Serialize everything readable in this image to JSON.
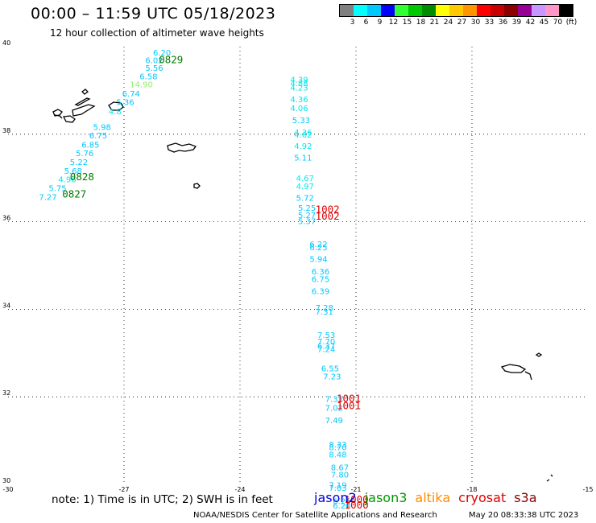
{
  "header": {
    "title": "00:00 – 11:59 UTC 05/18/2023",
    "subtitle": "12 hour collection of altimeter wave heights"
  },
  "legend": {
    "colors": [
      "#808080",
      "#00ffff",
      "#00c8ff",
      "#0000ff",
      "#32ff32",
      "#00c800",
      "#008c00",
      "#ffff00",
      "#ffc800",
      "#ff9600",
      "#ff0000",
      "#c80000",
      "#8c0000",
      "#960096",
      "#c896ff",
      "#ff96c8",
      "#000000"
    ],
    "labels": [
      "3",
      "6",
      "9",
      "12",
      "15",
      "18",
      "21",
      "24",
      "27",
      "30",
      "33",
      "36",
      "39",
      "42",
      "45",
      "70",
      "(ft)"
    ]
  },
  "axes": {
    "lon_ticks": [
      "-30",
      "-27",
      "-24",
      "-21",
      "-18",
      "-15"
    ],
    "lat_ticks": [
      "40",
      "38",
      "36",
      "34",
      "32",
      "30"
    ]
  },
  "wave_labels": [
    {
      "lon": -26.25,
      "lat": 39.8,
      "text": "6.20",
      "color": "#00c8ff"
    },
    {
      "lon": -26.45,
      "lat": 39.62,
      "text": "6.02",
      "color": "#00c8ff"
    },
    {
      "lon": -26.45,
      "lat": 39.45,
      "text": "5.56",
      "color": "#00c8ff"
    },
    {
      "lon": -26.6,
      "lat": 39.26,
      "text": "6.58",
      "color": "#00c8ff"
    },
    {
      "lon": -26.85,
      "lat": 39.07,
      "text": "14.90",
      "color": "#90ee70"
    },
    {
      "lon": -27.05,
      "lat": 38.86,
      "text": "6.74",
      "color": "#00c8ff"
    },
    {
      "lon": -27.2,
      "lat": 38.67,
      "text": "5.36",
      "color": "#00c8ff"
    },
    {
      "lon": -27.4,
      "lat": 38.46,
      "text": "4.8",
      "color": "#00e8ee"
    },
    {
      "lon": -27.8,
      "lat": 38.1,
      "text": "5.98",
      "color": "#00c8ff"
    },
    {
      "lon": -27.9,
      "lat": 37.9,
      "text": "6.75",
      "color": "#00c8ff"
    },
    {
      "lon": -28.1,
      "lat": 37.69,
      "text": "6.85",
      "color": "#00c8ff"
    },
    {
      "lon": -28.25,
      "lat": 37.5,
      "text": "5.76",
      "color": "#00c8ff"
    },
    {
      "lon": -28.4,
      "lat": 37.3,
      "text": "5.22",
      "color": "#00c8ff"
    },
    {
      "lon": -28.55,
      "lat": 37.1,
      "text": "5.68",
      "color": "#00c8ff"
    },
    {
      "lon": -28.7,
      "lat": 36.9,
      "text": "4.96",
      "color": "#00e8ee"
    },
    {
      "lon": -28.95,
      "lat": 36.7,
      "text": "5.75",
      "color": "#00c8ff"
    },
    {
      "lon": -29.2,
      "lat": 36.5,
      "text": "7.27",
      "color": "#00c8ff"
    },
    {
      "lon": -22.7,
      "lat": 39.18,
      "text": "4.39",
      "color": "#00e8ee"
    },
    {
      "lon": -22.7,
      "lat": 39.1,
      "text": "4.88",
      "color": "#00e8ee"
    },
    {
      "lon": -22.7,
      "lat": 39.0,
      "text": "4.23",
      "color": "#00e8ee"
    },
    {
      "lon": -22.7,
      "lat": 38.73,
      "text": "4.36",
      "color": "#00e8ee"
    },
    {
      "lon": -22.7,
      "lat": 38.53,
      "text": "4.06",
      "color": "#00e8ee"
    },
    {
      "lon": -22.65,
      "lat": 38.25,
      "text": "5.33",
      "color": "#00c8ff"
    },
    {
      "lon": -22.6,
      "lat": 37.98,
      "text": "4.36",
      "color": "#00e8ee"
    },
    {
      "lon": -22.6,
      "lat": 37.92,
      "text": "4.62",
      "color": "#00e8ee"
    },
    {
      "lon": -22.6,
      "lat": 37.67,
      "text": "4.92",
      "color": "#00e8ee"
    },
    {
      "lon": -22.6,
      "lat": 37.4,
      "text": "5.11",
      "color": "#00c8ff"
    },
    {
      "lon": -22.55,
      "lat": 36.93,
      "text": "4.67",
      "color": "#00e8ee"
    },
    {
      "lon": -22.55,
      "lat": 36.75,
      "text": "4.97",
      "color": "#00e8ee"
    },
    {
      "lon": -22.55,
      "lat": 36.48,
      "text": "5.72",
      "color": "#00c8ff"
    },
    {
      "lon": -22.5,
      "lat": 36.25,
      "text": "5.25",
      "color": "#00c8ff"
    },
    {
      "lon": -22.5,
      "lat": 36.08,
      "text": "5.27",
      "color": "#00c8ff"
    },
    {
      "lon": -22.5,
      "lat": 35.95,
      "text": "5.37",
      "color": "#00c8ff"
    },
    {
      "lon": -22.2,
      "lat": 35.42,
      "text": "6.22",
      "color": "#00c8ff"
    },
    {
      "lon": -22.2,
      "lat": 35.35,
      "text": "6.25",
      "color": "#00c8ff"
    },
    {
      "lon": -22.2,
      "lat": 35.08,
      "text": "5.94",
      "color": "#00c8ff"
    },
    {
      "lon": -22.15,
      "lat": 34.8,
      "text": "6.36",
      "color": "#00c8ff"
    },
    {
      "lon": -22.15,
      "lat": 34.62,
      "text": "6.75",
      "color": "#00c8ff"
    },
    {
      "lon": -22.15,
      "lat": 34.35,
      "text": "6.39",
      "color": "#00c8ff"
    },
    {
      "lon": -22.05,
      "lat": 33.97,
      "text": "7.28",
      "color": "#00c8ff"
    },
    {
      "lon": -22.05,
      "lat": 33.88,
      "text": "7.31",
      "color": "#00c8ff"
    },
    {
      "lon": -22.0,
      "lat": 33.35,
      "text": "7.53",
      "color": "#00c8ff"
    },
    {
      "lon": -22.0,
      "lat": 33.2,
      "text": "7.70",
      "color": "#00c8ff"
    },
    {
      "lon": -22.0,
      "lat": 33.1,
      "text": "6.37",
      "color": "#00c8ff"
    },
    {
      "lon": -22.0,
      "lat": 33.02,
      "text": "7.24",
      "color": "#00c8ff"
    },
    {
      "lon": -21.9,
      "lat": 32.58,
      "text": "6.55",
      "color": "#00c8ff"
    },
    {
      "lon": -21.85,
      "lat": 32.4,
      "text": "7.23",
      "color": "#00c8ff"
    },
    {
      "lon": -21.8,
      "lat": 31.88,
      "text": "7.33",
      "color": "#00c8ff"
    },
    {
      "lon": -21.8,
      "lat": 31.68,
      "text": "7.02",
      "color": "#00c8ff"
    },
    {
      "lon": -21.8,
      "lat": 31.4,
      "text": "7.49",
      "color": "#00c8ff"
    },
    {
      "lon": -21.7,
      "lat": 30.85,
      "text": "8.33",
      "color": "#00c8ff"
    },
    {
      "lon": -21.7,
      "lat": 30.78,
      "text": "8.70",
      "color": "#00c8ff"
    },
    {
      "lon": -21.7,
      "lat": 30.62,
      "text": "8.48",
      "color": "#00c8ff"
    },
    {
      "lon": -21.65,
      "lat": 30.32,
      "text": "8.67",
      "color": "#00c8ff"
    },
    {
      "lon": -21.65,
      "lat": 30.16,
      "text": "7.80",
      "color": "#00c8ff"
    },
    {
      "lon": -21.7,
      "lat": 29.92,
      "text": "7.19",
      "color": "#00c8ff"
    },
    {
      "lon": -21.7,
      "lat": 29.85,
      "text": "7.03",
      "color": "#00c8ff"
    },
    {
      "lon": -21.6,
      "lat": 29.55,
      "text": "6.25",
      "color": "#00c8ff"
    },
    {
      "lon": -21.6,
      "lat": 29.45,
      "text": "6.20",
      "color": "#00c8ff"
    }
  ],
  "pass_labels": [
    {
      "lon": -26.1,
      "lat": 39.62,
      "text": "0829",
      "color": "#007a00"
    },
    {
      "lon": -28.4,
      "lat": 36.95,
      "text": "0828",
      "color": "#007a00"
    },
    {
      "lon": -28.6,
      "lat": 36.55,
      "text": "0827",
      "color": "#007a00"
    },
    {
      "lon": -22.05,
      "lat": 36.2,
      "text": "1002",
      "color": "#dd0000"
    },
    {
      "lon": -22.05,
      "lat": 36.05,
      "text": "1002",
      "color": "#dd0000"
    },
    {
      "lon": -21.5,
      "lat": 31.88,
      "text": "1001",
      "color": "#dd0000"
    },
    {
      "lon": -21.5,
      "lat": 31.72,
      "text": "1001",
      "color": "#dd0000"
    },
    {
      "lon": -21.3,
      "lat": 29.58,
      "text": "1000",
      "color": "#dd0000"
    },
    {
      "lon": -21.3,
      "lat": 29.45,
      "text": "1000",
      "color": "#dd0000"
    }
  ],
  "footer": {
    "note": "note:  1) Time is in UTC;  2) SWH is in feet",
    "satellites": [
      {
        "name": "jason2",
        "color": "#0000dd"
      },
      {
        "name": "jason3",
        "color": "#009900"
      },
      {
        "name": "altika",
        "color": "#ff8c00"
      },
      {
        "name": "cryosat",
        "color": "#dd0000"
      },
      {
        "name": "s3a",
        "color": "#880000"
      }
    ],
    "credit_left": "NOAA/NESDIS Center for Satellite Applications and Research",
    "credit_right": "May 20 08:33:38 UTC 2023"
  }
}
